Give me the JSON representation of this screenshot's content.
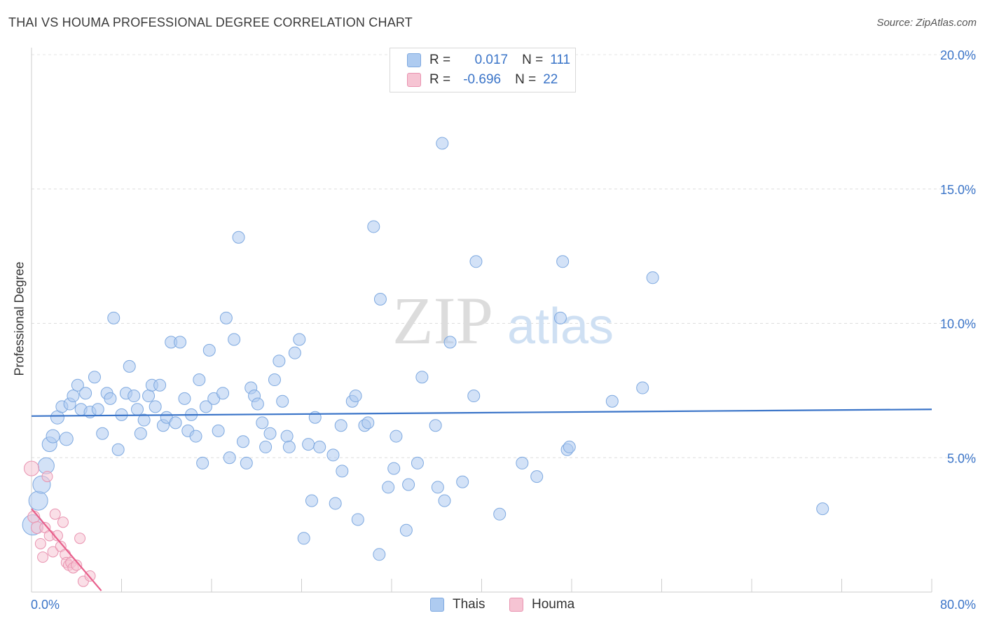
{
  "title": "THAI VS HOUMA PROFESSIONAL DEGREE CORRELATION CHART",
  "source": "Source: ZipAtlas.com",
  "watermark": {
    "zip": "ZIP",
    "atlas": "atlas"
  },
  "legend": {
    "rows": [
      {
        "r_label": "R =",
        "r_value": "0.017",
        "n_label": "N =",
        "n_value": "111",
        "color": "#aecbf0",
        "border": "#7ea9e0"
      },
      {
        "r_label": "R =",
        "r_value": "-0.696",
        "n_label": "N =",
        "n_value": "22",
        "color": "#f6c4d3",
        "border": "#e993b0"
      }
    ]
  },
  "bottom_legend": [
    {
      "label": "Thais",
      "color": "#aecbf0",
      "border": "#7ea9e0"
    },
    {
      "label": "Houma",
      "color": "#f6c4d3",
      "border": "#e993b0"
    }
  ],
  "chart_data": {
    "type": "scatter",
    "title": "THAI VS HOUMA PROFESSIONAL DEGREE CORRELATION CHART",
    "xlabel": "",
    "ylabel": "Professional Degree",
    "xlim": [
      0,
      80
    ],
    "ylim": [
      0,
      20
    ],
    "x_tick_labels": [
      "0.0%",
      "80.0%"
    ],
    "y_ticks": [
      5,
      10,
      15,
      20
    ],
    "y_tick_labels": [
      "5.0%",
      "10.0%",
      "15.0%",
      "20.0%"
    ],
    "grid": true,
    "colors": {
      "thais": "#3a74c8",
      "houma": "#e8608c"
    },
    "series": [
      {
        "name": "Thais",
        "trend": {
          "x": [
            0,
            80
          ],
          "y": [
            6.55,
            6.8
          ]
        },
        "points": [
          [
            0.1,
            2.5,
            26
          ],
          [
            0.6,
            3.4,
            24
          ],
          [
            0.9,
            4.0,
            22
          ],
          [
            1.3,
            4.7,
            20
          ],
          [
            1.6,
            5.5,
            18
          ],
          [
            1.9,
            5.8,
            16
          ],
          [
            2.3,
            6.5,
            16
          ],
          [
            2.7,
            6.9,
            14
          ],
          [
            3.1,
            5.7,
            16
          ],
          [
            3.4,
            7.0,
            14
          ],
          [
            3.7,
            7.3,
            14
          ],
          [
            4.1,
            7.7,
            14
          ],
          [
            4.4,
            6.8,
            14
          ],
          [
            4.8,
            7.4,
            14
          ],
          [
            5.2,
            6.7,
            14
          ],
          [
            5.6,
            8.0,
            14
          ],
          [
            5.9,
            6.8,
            14
          ],
          [
            6.3,
            5.9,
            14
          ],
          [
            6.7,
            7.4,
            14
          ],
          [
            7.0,
            7.2,
            14
          ],
          [
            7.3,
            10.2,
            14
          ],
          [
            7.7,
            5.3,
            14
          ],
          [
            8.0,
            6.6,
            14
          ],
          [
            8.4,
            7.4,
            14
          ],
          [
            8.7,
            8.4,
            14
          ],
          [
            9.1,
            7.3,
            14
          ],
          [
            9.4,
            6.8,
            14
          ],
          [
            9.7,
            5.9,
            14
          ],
          [
            10.0,
            6.4,
            14
          ],
          [
            10.4,
            7.3,
            14
          ],
          [
            10.7,
            7.7,
            14
          ],
          [
            11.0,
            6.9,
            14
          ],
          [
            11.4,
            7.7,
            14
          ],
          [
            11.7,
            6.2,
            14
          ],
          [
            12.0,
            6.5,
            14
          ],
          [
            12.4,
            9.3,
            14
          ],
          [
            12.8,
            6.3,
            14
          ],
          [
            13.2,
            9.3,
            14
          ],
          [
            13.6,
            7.2,
            14
          ],
          [
            13.9,
            6.0,
            14
          ],
          [
            14.2,
            6.6,
            14
          ],
          [
            14.6,
            5.8,
            14
          ],
          [
            14.9,
            7.9,
            14
          ],
          [
            15.2,
            4.8,
            14
          ],
          [
            15.5,
            6.9,
            14
          ],
          [
            15.8,
            9.0,
            14
          ],
          [
            16.2,
            7.2,
            14
          ],
          [
            16.6,
            6.0,
            14
          ],
          [
            17.0,
            7.4,
            14
          ],
          [
            17.3,
            10.2,
            14
          ],
          [
            17.6,
            5.0,
            14
          ],
          [
            18.0,
            9.4,
            14
          ],
          [
            18.4,
            13.2,
            14
          ],
          [
            18.8,
            5.6,
            14
          ],
          [
            19.1,
            4.8,
            14
          ],
          [
            19.5,
            7.6,
            14
          ],
          [
            19.8,
            7.3,
            14
          ],
          [
            20.1,
            7.0,
            14
          ],
          [
            20.5,
            6.3,
            14
          ],
          [
            20.8,
            5.4,
            14
          ],
          [
            21.2,
            5.9,
            14
          ],
          [
            21.6,
            7.9,
            14
          ],
          [
            22.0,
            8.6,
            14
          ],
          [
            22.3,
            7.1,
            14
          ],
          [
            22.7,
            5.8,
            14
          ],
          [
            22.9,
            5.4,
            14
          ],
          [
            23.4,
            8.9,
            14
          ],
          [
            23.8,
            9.4,
            14
          ],
          [
            24.2,
            2.0,
            14
          ],
          [
            24.6,
            5.5,
            14
          ],
          [
            24.9,
            3.4,
            14
          ],
          [
            25.2,
            6.5,
            14
          ],
          [
            25.6,
            5.4,
            14
          ],
          [
            26.8,
            5.1,
            14
          ],
          [
            27.0,
            3.3,
            14
          ],
          [
            27.5,
            6.2,
            14
          ],
          [
            27.6,
            4.5,
            14
          ],
          [
            28.5,
            7.1,
            14
          ],
          [
            28.8,
            7.3,
            14
          ],
          [
            29.0,
            2.7,
            14
          ],
          [
            29.6,
            6.2,
            14
          ],
          [
            29.9,
            6.3,
            14
          ],
          [
            30.4,
            13.6,
            14
          ],
          [
            30.9,
            1.4,
            14
          ],
          [
            31.0,
            10.9,
            14
          ],
          [
            31.7,
            3.9,
            14
          ],
          [
            32.2,
            4.6,
            14
          ],
          [
            32.4,
            5.8,
            14
          ],
          [
            33.3,
            2.3,
            14
          ],
          [
            33.5,
            4.0,
            14
          ],
          [
            34.3,
            4.8,
            14
          ],
          [
            34.7,
            8.0,
            14
          ],
          [
            35.9,
            6.2,
            14
          ],
          [
            36.1,
            3.9,
            14
          ],
          [
            36.5,
            16.7,
            14
          ],
          [
            36.7,
            3.4,
            14
          ],
          [
            37.2,
            9.3,
            14
          ],
          [
            38.3,
            4.1,
            14
          ],
          [
            39.3,
            7.3,
            14
          ],
          [
            39.5,
            12.3,
            14
          ],
          [
            41.6,
            2.9,
            14
          ],
          [
            43.6,
            4.8,
            14
          ],
          [
            44.9,
            4.3,
            14
          ],
          [
            47.0,
            10.2,
            14
          ],
          [
            47.2,
            12.3,
            14
          ],
          [
            47.6,
            5.3,
            14
          ],
          [
            47.8,
            5.4,
            14
          ],
          [
            51.6,
            7.1,
            14
          ],
          [
            54.3,
            7.6,
            14
          ],
          [
            55.2,
            11.7,
            14
          ],
          [
            70.3,
            3.1,
            14
          ]
        ]
      },
      {
        "name": "Houma",
        "trend": {
          "x": [
            0,
            6.2
          ],
          "y": [
            3.1,
            0.05
          ]
        },
        "points": [
          [
            0.0,
            4.6,
            18
          ],
          [
            0.2,
            2.8,
            14
          ],
          [
            0.5,
            2.4,
            14
          ],
          [
            0.8,
            1.8,
            12
          ],
          [
            1.0,
            1.3,
            12
          ],
          [
            1.2,
            2.4,
            12
          ],
          [
            1.4,
            4.3,
            12
          ],
          [
            1.6,
            2.1,
            12
          ],
          [
            1.9,
            1.5,
            12
          ],
          [
            2.1,
            2.9,
            12
          ],
          [
            2.3,
            2.1,
            12
          ],
          [
            2.6,
            1.7,
            12
          ],
          [
            2.8,
            2.6,
            12
          ],
          [
            3.0,
            1.4,
            12
          ],
          [
            3.1,
            1.1,
            12
          ],
          [
            3.3,
            1.0,
            12
          ],
          [
            3.5,
            1.1,
            12
          ],
          [
            3.7,
            0.9,
            12
          ],
          [
            4.0,
            1.0,
            12
          ],
          [
            4.3,
            2.0,
            12
          ],
          [
            4.6,
            0.4,
            12
          ],
          [
            5.2,
            0.6,
            12
          ]
        ]
      }
    ]
  }
}
